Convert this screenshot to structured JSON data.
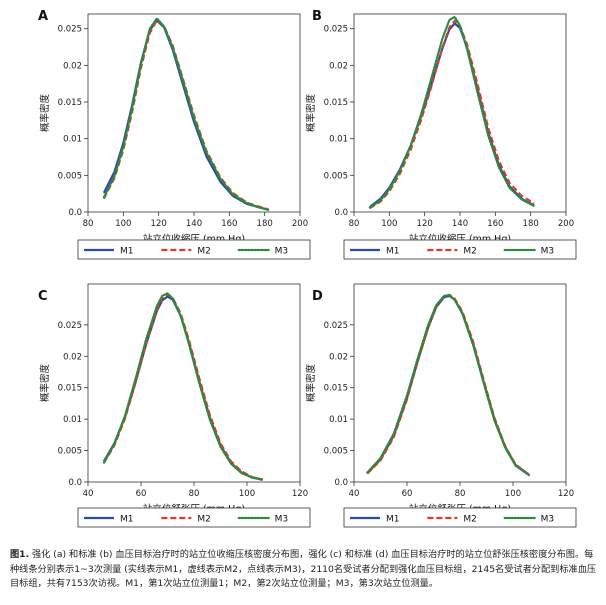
{
  "chart_data": [
    {
      "panel": "A",
      "type": "line",
      "grid": false,
      "legend": "bottom",
      "ylabel": "概率密度",
      "xlabel": "站立位收缩压 (mm Hg)",
      "xlim": [
        80,
        200
      ],
      "ylim": [
        0,
        0.027
      ],
      "xticks": [
        "80",
        "100",
        "120",
        "140",
        "160",
        "180",
        "200"
      ],
      "yticks": [
        "0.0",
        "0.005",
        "0.01",
        "0.015",
        "0.02",
        "0.025"
      ],
      "series": [
        {
          "name": "M1",
          "style": "solid",
          "x": [
            89,
            95,
            100,
            105,
            110,
            115,
            119,
            123,
            128,
            133,
            140,
            147,
            155,
            162,
            170,
            176,
            182
          ],
          "y": [
            0.0026,
            0.0055,
            0.0094,
            0.0146,
            0.0204,
            0.0248,
            0.0261,
            0.0252,
            0.0221,
            0.018,
            0.0123,
            0.0076,
            0.0041,
            0.0022,
            0.0011,
            0.0007,
            0.0003
          ]
        },
        {
          "name": "M2",
          "style": "dashed",
          "x": [
            89,
            95,
            100,
            105,
            110,
            115,
            119,
            123,
            128,
            133,
            140,
            147,
            155,
            162,
            170,
            176,
            182
          ],
          "y": [
            0.0018,
            0.0046,
            0.0084,
            0.0136,
            0.0196,
            0.0244,
            0.0261,
            0.0254,
            0.0227,
            0.0188,
            0.0132,
            0.0084,
            0.0047,
            0.0026,
            0.0013,
            0.0008,
            0.0004
          ]
        },
        {
          "name": "M3",
          "style": "dotted",
          "x": [
            89,
            95,
            100,
            105,
            110,
            115,
            119,
            123,
            128,
            133,
            140,
            147,
            155,
            162,
            170,
            176,
            182
          ],
          "y": [
            0.002,
            0.0049,
            0.0089,
            0.0142,
            0.0202,
            0.025,
            0.0264,
            0.0253,
            0.0224,
            0.0185,
            0.0128,
            0.0081,
            0.0045,
            0.0024,
            0.0012,
            0.0007,
            0.0003
          ]
        }
      ]
    },
    {
      "panel": "B",
      "type": "line",
      "grid": false,
      "legend": "bottom",
      "ylabel": "概率密度",
      "xlabel": "站立位收缩压 (mm Hg)",
      "xlim": [
        80,
        200
      ],
      "ylim": [
        0,
        0.027
      ],
      "xticks": [
        "80",
        "100",
        "120",
        "140",
        "160",
        "180",
        "200"
      ],
      "yticks": [
        "0.0",
        "0.005",
        "0.01",
        "0.015",
        "0.02",
        "0.025"
      ],
      "series": [
        {
          "name": "M1",
          "style": "solid",
          "x": [
            89,
            95,
            100,
            106,
            112,
            118,
            124,
            130,
            134,
            137,
            140,
            144,
            150,
            156,
            162,
            168,
            175,
            182
          ],
          "y": [
            0.0007,
            0.0018,
            0.0033,
            0.0058,
            0.009,
            0.013,
            0.0175,
            0.0223,
            0.0249,
            0.0257,
            0.0251,
            0.0224,
            0.0167,
            0.0108,
            0.0064,
            0.0035,
            0.0018,
            0.0009
          ]
        },
        {
          "name": "M2",
          "style": "dashed",
          "x": [
            89,
            95,
            100,
            106,
            112,
            118,
            124,
            130,
            134,
            137,
            140,
            144,
            150,
            156,
            162,
            168,
            175,
            182
          ],
          "y": [
            0.0005,
            0.0014,
            0.0028,
            0.0052,
            0.0084,
            0.0125,
            0.0172,
            0.0224,
            0.0252,
            0.0261,
            0.0254,
            0.0229,
            0.0174,
            0.0115,
            0.007,
            0.004,
            0.0022,
            0.0012
          ]
        },
        {
          "name": "M3",
          "style": "dotted",
          "x": [
            89,
            95,
            100,
            106,
            112,
            118,
            124,
            130,
            134,
            137,
            140,
            144,
            150,
            156,
            162,
            168,
            175,
            182
          ],
          "y": [
            0.0006,
            0.0016,
            0.0031,
            0.0056,
            0.009,
            0.0133,
            0.0184,
            0.0236,
            0.0262,
            0.0266,
            0.0254,
            0.0222,
            0.0162,
            0.0104,
            0.0061,
            0.0033,
            0.0017,
            0.0008
          ]
        }
      ]
    },
    {
      "panel": "C",
      "type": "line",
      "grid": false,
      "legend": "bottom",
      "ylabel": "概率密度",
      "xlabel": "站立位舒张压 (mm Hg)",
      "xlim": [
        40,
        120
      ],
      "ylim": [
        0,
        0.0315
      ],
      "xticks": [
        "40",
        "60",
        "80",
        "100",
        "120"
      ],
      "yticks": [
        "0.0",
        "0.005",
        "0.01",
        "0.015",
        "0.02",
        "0.025"
      ],
      "series": [
        {
          "name": "M1",
          "style": "solid",
          "x": [
            46,
            50,
            54,
            58,
            62,
            66,
            68,
            70,
            72,
            75,
            78,
            82,
            86,
            90,
            94,
            98,
            102,
            106
          ],
          "y": [
            0.0033,
            0.0062,
            0.0104,
            0.016,
            0.022,
            0.0272,
            0.0289,
            0.0295,
            0.029,
            0.0264,
            0.0223,
            0.016,
            0.0102,
            0.0058,
            0.003,
            0.0015,
            0.0007,
            0.0004
          ]
        },
        {
          "name": "M2",
          "style": "dashed",
          "x": [
            46,
            50,
            54,
            58,
            62,
            66,
            68,
            70,
            72,
            75,
            78,
            82,
            86,
            90,
            94,
            98,
            102,
            106
          ],
          "y": [
            0.003,
            0.0058,
            0.0101,
            0.0158,
            0.022,
            0.0274,
            0.0292,
            0.0298,
            0.0293,
            0.0268,
            0.0228,
            0.0166,
            0.0107,
            0.0062,
            0.0033,
            0.0017,
            0.0008,
            0.0004
          ]
        },
        {
          "name": "M3",
          "style": "dotted",
          "x": [
            46,
            50,
            54,
            58,
            62,
            66,
            68,
            70,
            72,
            75,
            78,
            82,
            86,
            90,
            94,
            98,
            102,
            106
          ],
          "y": [
            0.0031,
            0.0061,
            0.0106,
            0.0165,
            0.0228,
            0.028,
            0.0296,
            0.03,
            0.0292,
            0.0264,
            0.0221,
            0.0157,
            0.0099,
            0.0056,
            0.0029,
            0.0014,
            0.0007,
            0.0003
          ]
        }
      ]
    },
    {
      "panel": "D",
      "type": "line",
      "grid": false,
      "legend": "bottom",
      "ylabel": "概率密度",
      "xlabel": "站立位舒张压 (mm Hg)",
      "xlim": [
        40,
        120
      ],
      "ylim": [
        0,
        0.0315
      ],
      "xticks": [
        "40",
        "60",
        "80",
        "100",
        "120"
      ],
      "yticks": [
        "0.0",
        "0.005",
        "0.01",
        "0.015",
        "0.02",
        "0.025"
      ],
      "series": [
        {
          "name": "M1",
          "style": "solid",
          "x": [
            45,
            50,
            55,
            60,
            64,
            68,
            71,
            74,
            76,
            78,
            81,
            85,
            89,
            93,
            97,
            101,
            106
          ],
          "y": [
            0.0014,
            0.0036,
            0.0074,
            0.0134,
            0.0192,
            0.0246,
            0.0278,
            0.0294,
            0.0296,
            0.029,
            0.0268,
            0.0219,
            0.0158,
            0.01,
            0.0056,
            0.0027,
            0.0012
          ]
        },
        {
          "name": "M2",
          "style": "dashed",
          "x": [
            45,
            50,
            55,
            60,
            64,
            68,
            71,
            74,
            76,
            78,
            81,
            85,
            89,
            93,
            97,
            101,
            106
          ],
          "y": [
            0.0013,
            0.0034,
            0.0071,
            0.0131,
            0.019,
            0.0245,
            0.0278,
            0.0295,
            0.0298,
            0.0292,
            0.0271,
            0.0223,
            0.0162,
            0.0103,
            0.0058,
            0.0028,
            0.0012
          ]
        },
        {
          "name": "M3",
          "style": "dotted",
          "x": [
            45,
            50,
            55,
            60,
            64,
            68,
            71,
            74,
            76,
            78,
            81,
            85,
            89,
            93,
            97,
            101,
            106
          ],
          "y": [
            0.0015,
            0.0038,
            0.0077,
            0.0138,
            0.0196,
            0.025,
            0.0281,
            0.0296,
            0.0297,
            0.029,
            0.0267,
            0.0217,
            0.0156,
            0.0098,
            0.0055,
            0.0026,
            0.0011
          ]
        }
      ]
    }
  ],
  "legend": {
    "items": [
      "M1",
      "M2",
      "M3"
    ]
  },
  "colors": {
    "M1": "#2d4aa6",
    "M2": "#e3362a",
    "M3": "#2b8a3b"
  },
  "caption": {
    "lead": "图1.",
    "text": " 强化 (a) 和标准 (b) 血压目标治疗时的站立位收缩压核密度分布图，强化 (c) 和标准 (d) 血压目标治疗时的站立位舒张压核密度分布图。每种线条分别表示1~3次测量 (实线表示M1，虚线表示M2，点线表示M3)，2110名受试者分配到强化血压目标组，2145名受试者分配到标准血压目标组，共有7153次访视。M1，第1次站立位测量1；M2，第2次站立位测量；M3，第3次站立位测量。"
  }
}
